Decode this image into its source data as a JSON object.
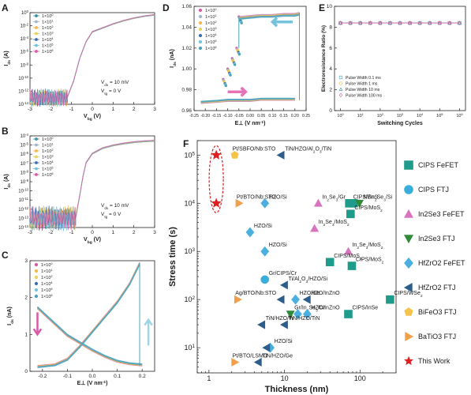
{
  "chart_data": [
    {
      "panel": "A",
      "type": "line",
      "xlabel": "V_bg (V)",
      "ylabel": "I_ds (A)",
      "xlim": [
        -3,
        3
      ],
      "ylim_exp": [
        -14,
        0
      ],
      "log_y": true,
      "xticks": [
        "-3",
        "-2",
        "-1",
        "0",
        "1",
        "2",
        "3"
      ],
      "yticks": [
        "10^-14",
        "10^-12",
        "10^-10",
        "10^-8",
        "10^-6",
        "10^-4",
        "10^-2",
        "10^0"
      ],
      "annotations": [
        "V_ds = 10 mV",
        "V_tg = 0 V"
      ],
      "series": [
        {
          "name": "1×10^0",
          "color": "#3a8f9e"
        },
        {
          "name": "1×10^1",
          "color": "#9fb7c9"
        },
        {
          "name": "1×10^2",
          "color": "#f2b84b"
        },
        {
          "name": "1×10^3",
          "color": "#e8d25a"
        },
        {
          "name": "1×10^4",
          "color": "#3f6fb0"
        },
        {
          "name": "1×10^5",
          "color": "#73c3dd"
        },
        {
          "name": "1×10^6",
          "color": "#d85aa8"
        }
      ],
      "curve": {
        "x": [
          -3,
          -1.2,
          -0.9,
          -0.6,
          -0.3,
          0,
          0.5,
          1,
          1.5,
          2,
          2.5,
          3
        ],
        "y_exp": [
          -13,
          -13,
          -10.5,
          -7,
          -4.5,
          -3,
          -2.4,
          -1.8,
          -1.3,
          -0.9,
          -0.6,
          -0.4
        ]
      }
    },
    {
      "panel": "B",
      "type": "line",
      "xlabel": "V_bg (V)",
      "ylabel": "I_ds (A)",
      "xlim": [
        -3,
        3
      ],
      "ylim_exp": [
        -14,
        -4
      ],
      "log_y": true,
      "xticks": [
        "-3",
        "-2",
        "-1",
        "0",
        "1",
        "2",
        "3"
      ],
      "yticks": [
        "10^-14",
        "10^-13",
        "10^-12",
        "10^-11",
        "10^-10",
        "10^-9",
        "10^-8",
        "10^-7",
        "10^-6",
        "10^-5",
        "10^-4"
      ],
      "annotations": [
        "V_ds = 10 mV",
        "V_tg = 0 V"
      ],
      "series": [
        {
          "name": "1×10^0",
          "color": "#3a8f9e"
        },
        {
          "name": "1×10^1",
          "color": "#9fb7c9"
        },
        {
          "name": "1×10^2",
          "color": "#f2b84b"
        },
        {
          "name": "1×10^3",
          "color": "#e8d25a"
        },
        {
          "name": "1×10^4",
          "color": "#3f6fb0"
        },
        {
          "name": "1×10^5",
          "color": "#73c3dd"
        },
        {
          "name": "1×10^6",
          "color": "#d85aa8"
        }
      ],
      "curve": {
        "x": [
          -3,
          -0.8,
          -0.6,
          -0.45,
          -0.3,
          0,
          0.5,
          1,
          1.5,
          2,
          2.5,
          3
        ],
        "y_exp": [
          -13,
          -13,
          -10.5,
          -8.5,
          -7,
          -6,
          -5.4,
          -5.1,
          -4.9,
          -4.75,
          -4.65,
          -4.6
        ]
      }
    },
    {
      "panel": "C",
      "type": "line",
      "xlabel": "E⊥ (V nm^-1)",
      "ylabel": "I_ds (nA)",
      "xlim": [
        -0.25,
        0.25
      ],
      "ylim": [
        0,
        3
      ],
      "xticks": [
        "-0.2",
        "-0.1",
        "0.0",
        "0.1",
        "0.2"
      ],
      "yticks": [
        "0",
        "1",
        "2",
        "3"
      ],
      "series": [
        {
          "name": "1×10^0",
          "color": "#d85aa8"
        },
        {
          "name": "1×10^1",
          "color": "#f2b84b"
        },
        {
          "name": "1×10^2",
          "color": "#e8d25a"
        },
        {
          "name": "1×10^4",
          "color": "#3f6fb0"
        },
        {
          "name": "1×10^5",
          "color": "#73c3dd"
        },
        {
          "name": "1×10^6",
          "color": "#4aa3b8"
        }
      ],
      "curve_up": {
        "x": [
          -0.22,
          -0.15,
          -0.1,
          -0.05,
          0,
          0.05,
          0.1,
          0.15,
          0.19
        ],
        "y": [
          0.15,
          0.2,
          0.35,
          0.7,
          1.1,
          1.5,
          1.9,
          2.4,
          2.95
        ]
      },
      "curve_down": {
        "x": [
          -0.22,
          -0.18,
          -0.14,
          -0.1,
          -0.05,
          0,
          0.05,
          0.1,
          0.15,
          0.2
        ],
        "y": [
          1.7,
          1.45,
          1.2,
          0.95,
          0.75,
          0.55,
          0.38,
          0.25,
          0.18,
          0.15
        ]
      }
    },
    {
      "panel": "D",
      "type": "line",
      "xlabel": "E⊥ (V nm^-1)",
      "ylabel": "I_ds (nA)",
      "xlim": [
        -0.25,
        0.25
      ],
      "ylim": [
        0.96,
        1.06
      ],
      "xticks": [
        "-0.25",
        "-0.20",
        "-0.15",
        "-0.10",
        "-0.05",
        "0.00",
        "0.05",
        "0.10",
        "0.15",
        "0.20",
        "0.25"
      ],
      "yticks": [
        "0.96",
        "0.98",
        "1.00",
        "1.02",
        "1.04",
        "1.06"
      ],
      "series": [
        {
          "name": "1×10^0",
          "color": "#d85aa8"
        },
        {
          "name": "1×10^1",
          "color": "#9fb7c9"
        },
        {
          "name": "1×10^2",
          "color": "#f2b84b"
        },
        {
          "name": "1×10^3",
          "color": "#e8d25a"
        },
        {
          "name": "1×10^4",
          "color": "#3f6fb0"
        },
        {
          "name": "1×10^5",
          "color": "#73c3dd"
        },
        {
          "name": "1×10^6",
          "color": "#4aa3b8"
        }
      ],
      "low_branch": {
        "x": [
          -0.22,
          -0.15,
          -0.1,
          -0.05,
          0,
          0.05,
          0.1,
          0.15,
          0.2
        ],
        "y": [
          0.967,
          0.968,
          0.969,
          0.969,
          0.969,
          0.97,
          0.97,
          0.97,
          0.97
        ]
      },
      "high_branch": {
        "x": [
          -0.05,
          0,
          0.05,
          0.1,
          0.15,
          0.2,
          0.22
        ],
        "y": [
          1.05,
          1.051,
          1.052,
          1.052,
          1.053,
          1.053,
          1.054
        ]
      }
    },
    {
      "panel": "E",
      "type": "line",
      "xlabel": "Switching Cycles",
      "ylabel": "Electroresistance Ratio (%)",
      "xlim_exp": [
        0,
        6
      ],
      "ylim": [
        0,
        10
      ],
      "xticks": [
        "10^0",
        "10^1",
        "10^2",
        "10^3",
        "10^4",
        "10^5",
        "10^6"
      ],
      "yticks": [
        "0",
        "2",
        "4",
        "6",
        "8",
        "10"
      ],
      "series": [
        {
          "name": "Pulse Width 0.1 ms",
          "color": "#4fa3c4",
          "marker": "square"
        },
        {
          "name": "Pulse Width 1 ms",
          "color": "#f2b84b",
          "marker": "circle"
        },
        {
          "name": "Pulse Width 10 ms",
          "color": "#3a8f9e",
          "marker": "triangle"
        },
        {
          "name": "Pulse Width 100 ms",
          "color": "#d85aa8",
          "marker": "diamond"
        }
      ],
      "values": [
        {
          "x_exp": 0,
          "y": 8.4
        },
        {
          "x_exp": 0.5,
          "y": 8.4
        },
        {
          "x_exp": 1,
          "y": 8.4
        },
        {
          "x_exp": 1.5,
          "y": 8.4
        },
        {
          "x_exp": 2,
          "y": 8.4
        },
        {
          "x_exp": 2.5,
          "y": 8.4
        },
        {
          "x_exp": 3,
          "y": 8.4
        },
        {
          "x_exp": 3.5,
          "y": 8.4
        },
        {
          "x_exp": 4,
          "y": 8.4
        },
        {
          "x_exp": 4.5,
          "y": 8.4
        },
        {
          "x_exp": 5,
          "y": 8.4
        },
        {
          "x_exp": 5.5,
          "y": 8.4
        },
        {
          "x_exp": 6,
          "y": 8.4
        }
      ]
    },
    {
      "panel": "F",
      "type": "scatter",
      "xlabel": "Thickness (nm)",
      "ylabel": "Stress time (s)",
      "log_x": true,
      "log_y": true,
      "xlim": [
        0.7,
        300
      ],
      "ylim": [
        3,
        200000
      ],
      "xticks": [
        "1",
        "10",
        "100"
      ],
      "yticks": [
        "10^1",
        "10^2",
        "10^3",
        "10^4",
        "10^5"
      ],
      "legend": [
        {
          "name": "CIPS FeFET",
          "color": "#1e9b8a",
          "marker": "square"
        },
        {
          "name": "CIPS FTJ",
          "color": "#3aaedb",
          "marker": "circle"
        },
        {
          "name": "In2Se3 FeFET",
          "color": "#d873c0",
          "marker": "triangle-up"
        },
        {
          "name": "In2Se3 FTJ",
          "color": "#2f8a3a",
          "marker": "triangle-down"
        },
        {
          "name": "HfZrO2 FeFET",
          "color": "#4bb0e0",
          "marker": "diamond"
        },
        {
          "name": "HfZrO2 FTJ",
          "color": "#2d5d8a",
          "marker": "triangle-left"
        },
        {
          "name": "BiFeO3 FTJ",
          "color": "#f6c34a",
          "marker": "pentagon"
        },
        {
          "name": "BaTiO3 FTJ",
          "color": "#f0a04a",
          "marker": "triangle-right"
        },
        {
          "name": "This Work",
          "color": "#e02020",
          "marker": "star"
        }
      ],
      "points": [
        {
          "x": 1.25,
          "y": 100000,
          "cat": "This Work",
          "label": ""
        },
        {
          "x": 1.25,
          "y": 10000,
          "cat": "This Work",
          "label": ""
        },
        {
          "x": 2.2,
          "y": 100000,
          "cat": "BiFeO3 FTJ",
          "label": "Pt/SBFO/Nb:STO"
        },
        {
          "x": 9,
          "y": 100000,
          "cat": "HfZrO2 FTJ",
          "label": "TiN/HZO/Al2O3/TiN"
        },
        {
          "x": 2.5,
          "y": 10000,
          "cat": "BaTiO3 FTJ",
          "label": "Pt/BTO/Nb:STO"
        },
        {
          "x": 5.5,
          "y": 10000,
          "cat": "HfZrO2 FeFET",
          "label": "HZO/Si"
        },
        {
          "x": 28,
          "y": 10000,
          "cat": "In2Se3 FeFET",
          "label": "In2Se3/Gr"
        },
        {
          "x": 72,
          "y": 10000,
          "cat": "CIPS FeFET",
          "label": "CIPS/SnS"
        },
        {
          "x": 82,
          "y": 10000,
          "cat": "CIPS FeFET",
          "label": ""
        },
        {
          "x": 98,
          "y": 10000,
          "cat": "In2Se3 FTJ",
          "label": "Ni/In2Se3/Si"
        },
        {
          "x": 75,
          "y": 6000,
          "cat": "CIPS FeFET",
          "label": "CIPS/MoS2"
        },
        {
          "x": 3.5,
          "y": 2500,
          "cat": "HfZrO2 FeFET",
          "label": "HZO/Si"
        },
        {
          "x": 25,
          "y": 3000,
          "cat": "In2Se3 FeFET",
          "label": "In2Se3/MoS2"
        },
        {
          "x": 5.5,
          "y": 1000,
          "cat": "HfZrO2 FeFET",
          "label": "HZO/Si"
        },
        {
          "x": 70,
          "y": 1000,
          "cat": "In2Se3 FeFET",
          "label": "In2Se3/MoS2"
        },
        {
          "x": 40,
          "y": 600,
          "cat": "CIPS FeFET",
          "label": "CIPS/MoS2"
        },
        {
          "x": 78,
          "y": 500,
          "cat": "CIPS FeFET",
          "label": "CIPS/MoS2"
        },
        {
          "x": 5.5,
          "y": 260,
          "cat": "CIPS FTJ",
          "label": "Gr/CIPS/Cr"
        },
        {
          "x": 10,
          "y": 200,
          "cat": "HfZrO2 FTJ",
          "label": "Ti/Al2O3/HZO/Si"
        },
        {
          "x": 2.4,
          "y": 100,
          "cat": "BaTiO3 FTJ",
          "label": "Ag/BTO/Nb:STO"
        },
        {
          "x": 9,
          "y": 100,
          "cat": "HfZrO2 FTJ",
          "label": ""
        },
        {
          "x": 14,
          "y": 100,
          "cat": "HfZrO2 FeFET",
          "label": "HZO/Ge"
        },
        {
          "x": 20,
          "y": 100,
          "cat": "HfZrO2 FTJ",
          "label": "HZO/InZnO"
        },
        {
          "x": 250,
          "y": 100,
          "cat": "CIPS FeFET",
          "label": "CIPS/WSe2"
        },
        {
          "x": 12,
          "y": 50,
          "cat": "In2Se3 FTJ",
          "label": "Gr/In2Se3/Cr"
        },
        {
          "x": 15,
          "y": 50,
          "cat": "HfZrO2 FeFET",
          "label": ""
        },
        {
          "x": 20,
          "y": 50,
          "cat": "HfZrO2 FeFET",
          "label": "HZO/InZnO"
        },
        {
          "x": 70,
          "y": 50,
          "cat": "CIPS FeFET",
          "label": "CIPS/InSe"
        },
        {
          "x": 5,
          "y": 30,
          "cat": "HfZrO2 FTJ",
          "label": "TiN/HZO/W"
        },
        {
          "x": 10,
          "y": 30,
          "cat": "HfZrO2 FTJ",
          "label": "TiN/HZO/TiN"
        },
        {
          "x": 6.5,
          "y": 10,
          "cat": "HfZrO2 FeFET",
          "label": "HZO/Si"
        },
        {
          "x": 5.8,
          "y": 10,
          "cat": "HfZrO2 FTJ",
          "label": ""
        },
        {
          "x": 2.2,
          "y": 5,
          "cat": "BaTiO3 FTJ",
          "label": "Pt/BTO/LSMO"
        },
        {
          "x": 4.5,
          "y": 5,
          "cat": "HfZrO2 FTJ",
          "label": "TiN/HZO/Ge"
        }
      ]
    }
  ],
  "panel_labels": [
    "A",
    "B",
    "C",
    "D",
    "E",
    "F"
  ]
}
